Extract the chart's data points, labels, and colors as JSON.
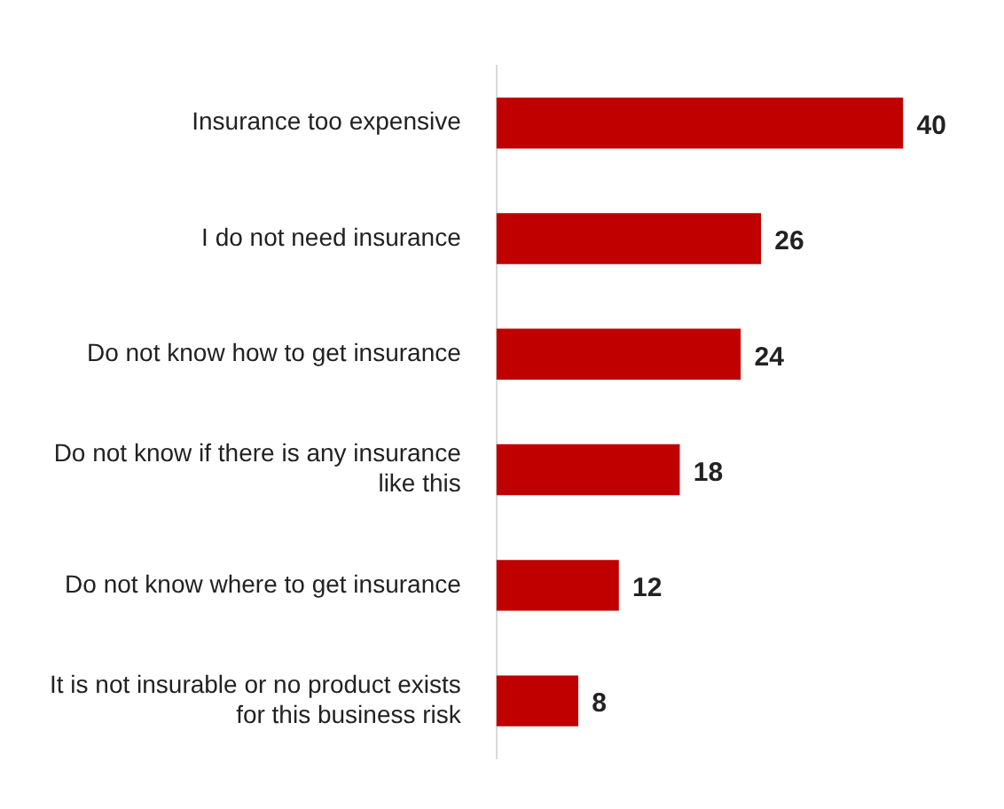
{
  "chart_data": {
    "type": "bar",
    "orientation": "horizontal",
    "categories": [
      "Insurance too expensive",
      "I do not need insurance",
      "Do not know how to get insurance",
      "Do not know if there is any insurance like this",
      "Do not know where to get insurance",
      "It is not insurable or no product exists for this business risk"
    ],
    "values": [
      40,
      26,
      24,
      18,
      12,
      8
    ],
    "color": "#c00000",
    "data_labels": true,
    "legend": false
  }
}
